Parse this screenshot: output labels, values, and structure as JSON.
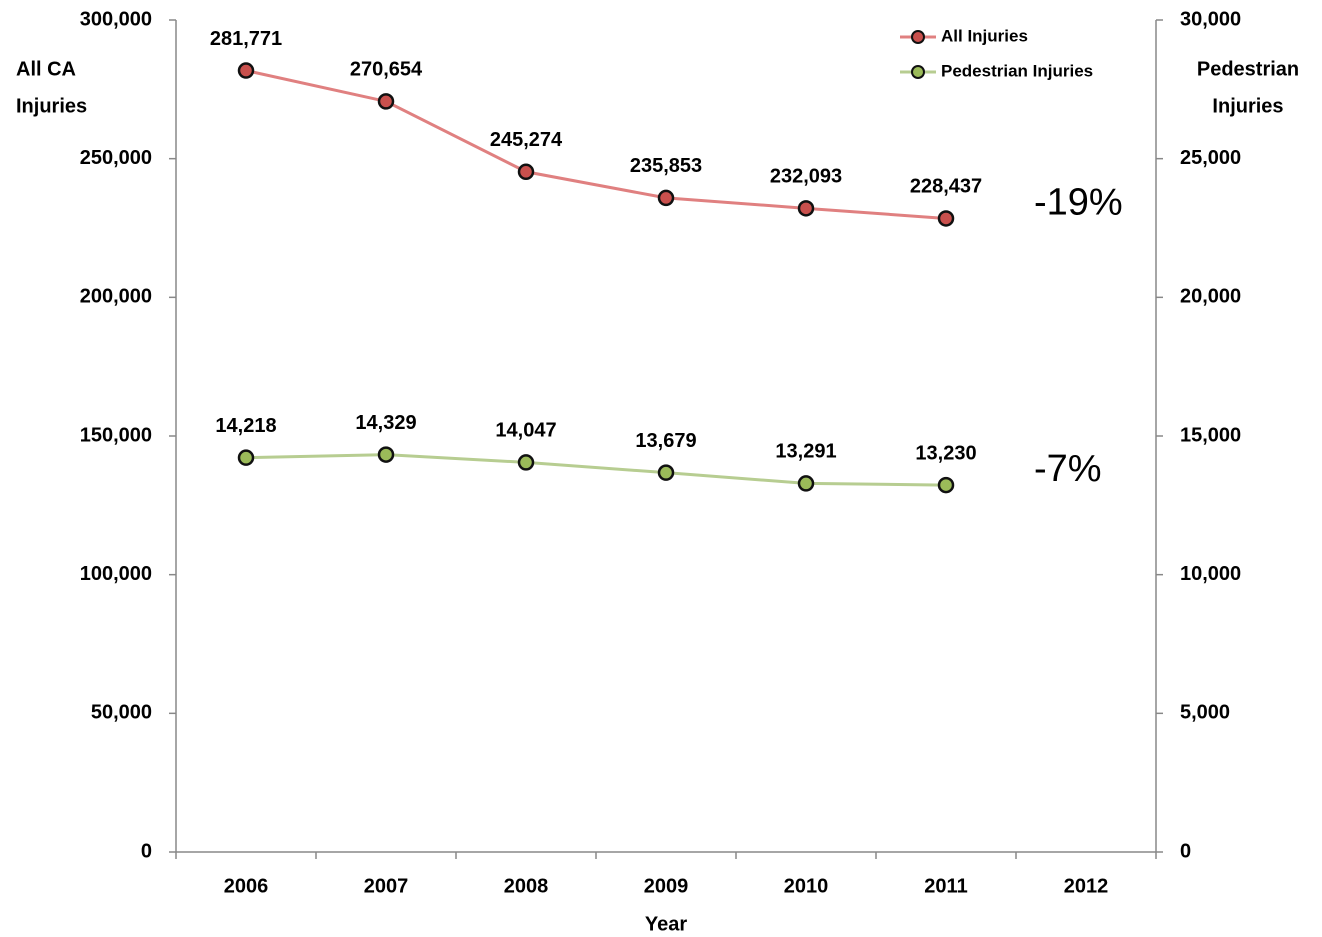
{
  "chart_data": {
    "type": "line",
    "ylabel": [
      "All CA",
      "Injuries"
    ],
    "y2label": [
      "Pedestrian",
      "Injuries"
    ],
    "xlabel": "Year",
    "categories": [
      "2006",
      "2007",
      "2008",
      "2009",
      "2010",
      "2011",
      "2012"
    ],
    "series": [
      {
        "name": "All Injuries",
        "color": "#e08080",
        "marker_color": "#c9504d",
        "values": [
          281771,
          270654,
          245274,
          235853,
          232093,
          228437,
          null
        ],
        "value_labels": [
          "281,771",
          "270,654",
          "245,274",
          "235,853",
          "232,093",
          "228,437",
          null
        ]
      },
      {
        "name": "Pedestrian Injuries",
        "color": "#b7cd91",
        "marker_color": "#9bbb59",
        "axis": "y2",
        "values": [
          14218,
          14329,
          14047,
          13679,
          13291,
          13230,
          null
        ],
        "value_labels": [
          "14,218",
          "14,329",
          "14,047",
          "13,679",
          "13,291",
          "13,230",
          null
        ]
      }
    ],
    "annotations": [
      "-19%",
      "-7%"
    ],
    "ylim": [
      0,
      300000
    ],
    "yticks": [
      0,
      {
        "value": 50000,
        "label": "50,000"
      },
      {
        "value": 100000,
        "label": "100,000"
      },
      {
        "value": 150000,
        "label": "150,000"
      },
      {
        "value": 200000,
        "label": "200,000"
      },
      {
        "value": 250000,
        "label": "250,000"
      },
      {
        "value": 300000,
        "label": "300,000"
      }
    ],
    "y2lim": [
      0,
      30000
    ],
    "y2ticks": [
      0,
      {
        "value": 5000,
        "label": "5,000"
      },
      {
        "value": 10000,
        "label": "10,000"
      },
      {
        "value": 15000,
        "label": "15,000"
      },
      {
        "value": 20000,
        "label": "20,000"
      },
      {
        "value": 25000,
        "label": "25,000"
      },
      {
        "value": 30000,
        "label": "30,000"
      }
    ],
    "grid": false
  }
}
